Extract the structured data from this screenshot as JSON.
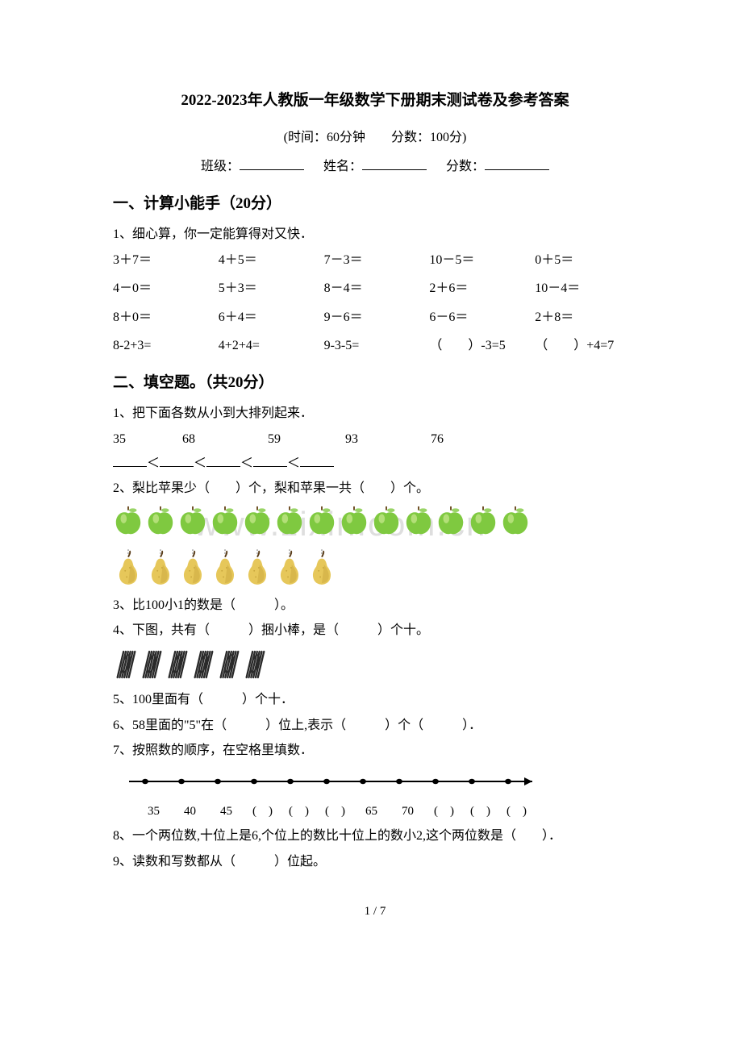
{
  "title": "2022-2023年人教版一年级数学下册期末测试卷及参考答案",
  "meta": {
    "time_score": "(时间：60分钟　　分数：100分)",
    "class_label": "班级：",
    "name_label": "姓名：",
    "score_label": "分数："
  },
  "section1": {
    "head": "一、计算小能手（20分）",
    "q1_intro": "1、细心算，你一定能算得对又快．",
    "rows": [
      [
        "3＋7＝",
        "4＋5＝",
        "7－3＝",
        "10－5＝",
        "0＋5＝"
      ],
      [
        "4－0＝",
        "5＋3＝",
        "8－4＝",
        "2＋6＝",
        "10－4＝"
      ],
      [
        "8＋0＝",
        "6＋4＝",
        "9－6＝",
        "6－6＝",
        "2＋8＝"
      ],
      [
        "8-2+3=",
        "4+2+4=",
        "9-3-5=",
        "（　　）-3=5",
        "（　　）+4=7"
      ]
    ]
  },
  "section2": {
    "head": "二、填空题。（共20分）",
    "q1_intro": "1、把下面各数从小到大排列起来．",
    "q1_nums": [
      "35",
      "68",
      "59",
      "93",
      "76"
    ],
    "q2": "2、梨比苹果少（　　）个，梨和苹果一共（　　）个。",
    "q3": "3、比100小1的数是（　　　）。",
    "q4": "4、下图，共有（　　　）捆小棒，是（　　　）个十。",
    "q5": "5、100里面有（　　　）个十．",
    "q6": "6、58里面的\"5\"在（　　　）位上,表示（　　　）个（　　　）．",
    "q7": "7、按照数的顺序，在空格里填数．",
    "numline_labels": [
      "35",
      "40",
      "45",
      "(　)",
      "(　)",
      "(　)",
      "65",
      "70",
      "(　)",
      "(　)",
      "(　)"
    ],
    "q8": "8、一个两位数,十位上是6,个位上的数比十位上的数小2,这个两位数是（　　）．",
    "q9": "9、读数和写数都从（　　　）位起。"
  },
  "colors": {
    "apple_fill": "#7fc940",
    "apple_shine": "#c9e890",
    "apple_stem": "#6b4a1f",
    "pear_fill": "#e6c75a",
    "pear_shade": "#c9a83e",
    "pear_stem": "#5a3d1a",
    "stick_fill": "#2a2a2a",
    "numline_color": "#000000"
  },
  "counts": {
    "apples": 13,
    "pears": 7,
    "pears_with_line": 7,
    "stick_bundles": 6,
    "numline_ticks": 11
  },
  "footer": "1 / 7",
  "watermark": "www.zixin.com.cn"
}
